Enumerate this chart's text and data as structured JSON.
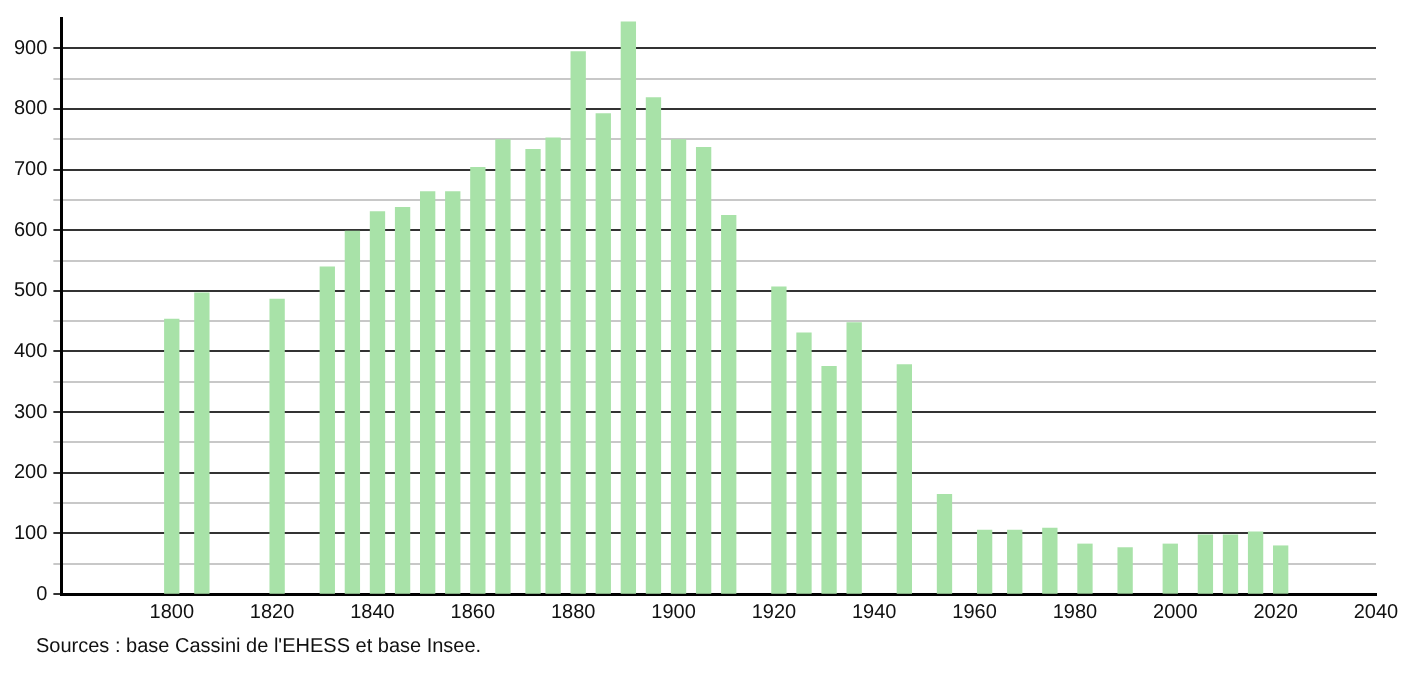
{
  "chart_data": {
    "type": "bar",
    "color": "#a8e2a8",
    "x": [
      1800,
      1806,
      1821,
      1831,
      1836,
      1841,
      1846,
      1851,
      1856,
      1861,
      1866,
      1872,
      1876,
      1881,
      1886,
      1891,
      1896,
      1901,
      1906,
      1911,
      1921,
      1926,
      1931,
      1936,
      1946,
      1954,
      1962,
      1968,
      1975,
      1982,
      1990,
      1999,
      2006,
      2011,
      2016,
      2021
    ],
    "values": [
      453,
      496,
      486,
      539,
      598,
      630,
      637,
      663,
      663,
      703,
      749,
      733,
      752,
      894,
      792,
      943,
      818,
      749,
      736,
      624,
      506,
      430,
      375,
      447,
      378,
      164,
      105,
      105,
      108,
      82,
      76,
      82,
      97,
      97,
      102,
      79
    ],
    "xlim": [
      1778,
      2040
    ],
    "xticks": [
      1800,
      1820,
      1840,
      1860,
      1880,
      1900,
      1920,
      1940,
      1960,
      1980,
      2000,
      2020,
      2040
    ],
    "ylim": [
      0,
      950
    ],
    "yticks": [
      0,
      {
        "value": 50,
        "label": null
      },
      100,
      {
        "value": 150,
        "label": null
      },
      200,
      {
        "value": 250,
        "label": null
      },
      300,
      {
        "value": 350,
        "label": null
      },
      400,
      {
        "value": 450,
        "label": null
      },
      500,
      {
        "value": 550,
        "label": null
      },
      600,
      {
        "value": 650,
        "label": null
      },
      700,
      {
        "value": 750,
        "label": null
      },
      800,
      {
        "value": 850,
        "label": null
      },
      900
    ],
    "grid": "y",
    "annotations": [
      "Sources : base Cassini de l'EHESS et base Insee."
    ]
  }
}
